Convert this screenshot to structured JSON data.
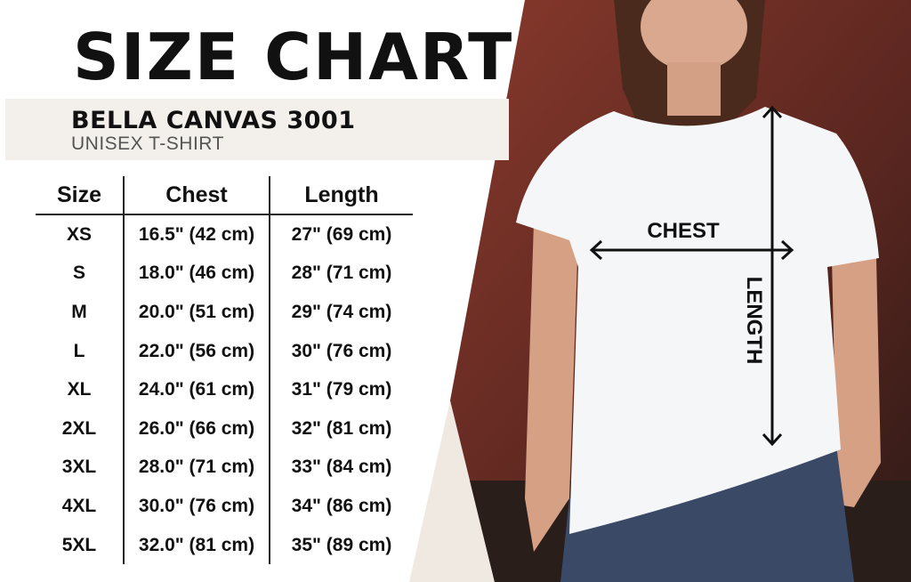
{
  "title": "SIZE CHART",
  "brand": "BELLA CANVAS 3001",
  "subtitle": "UNISEX T-SHIRT",
  "table": {
    "headers": [
      "Size",
      "Chest",
      "Length"
    ],
    "rows": [
      [
        "XS",
        "16.5\" (42 cm)",
        "27\" (69 cm)"
      ],
      [
        "S",
        "18.0\" (46 cm)",
        "28\" (71 cm)"
      ],
      [
        "M",
        "20.0\" (51 cm)",
        "29\" (74 cm)"
      ],
      [
        "L",
        "22.0\" (56 cm)",
        "30\" (76 cm)"
      ],
      [
        "XL",
        "24.0\" (61 cm)",
        "31\" (79 cm)"
      ],
      [
        "2XL",
        "26.0\" (66 cm)",
        "32\" (81 cm)"
      ],
      [
        "3XL",
        "28.0\" (71 cm)",
        "33\" (84 cm)"
      ],
      [
        "4XL",
        "30.0\" (76 cm)",
        "34\" (86 cm)"
      ],
      [
        "5XL",
        "32.0\" (81 cm)",
        "35\" (89 cm)"
      ]
    ]
  },
  "photo": {
    "chest_label": "CHEST",
    "length_label": "LENGTH"
  },
  "colors": {
    "band": "#f3f0eb",
    "background_wall": "#6b2f26",
    "shirt": "#f4f6f8",
    "jeans": "#3a4a66"
  }
}
